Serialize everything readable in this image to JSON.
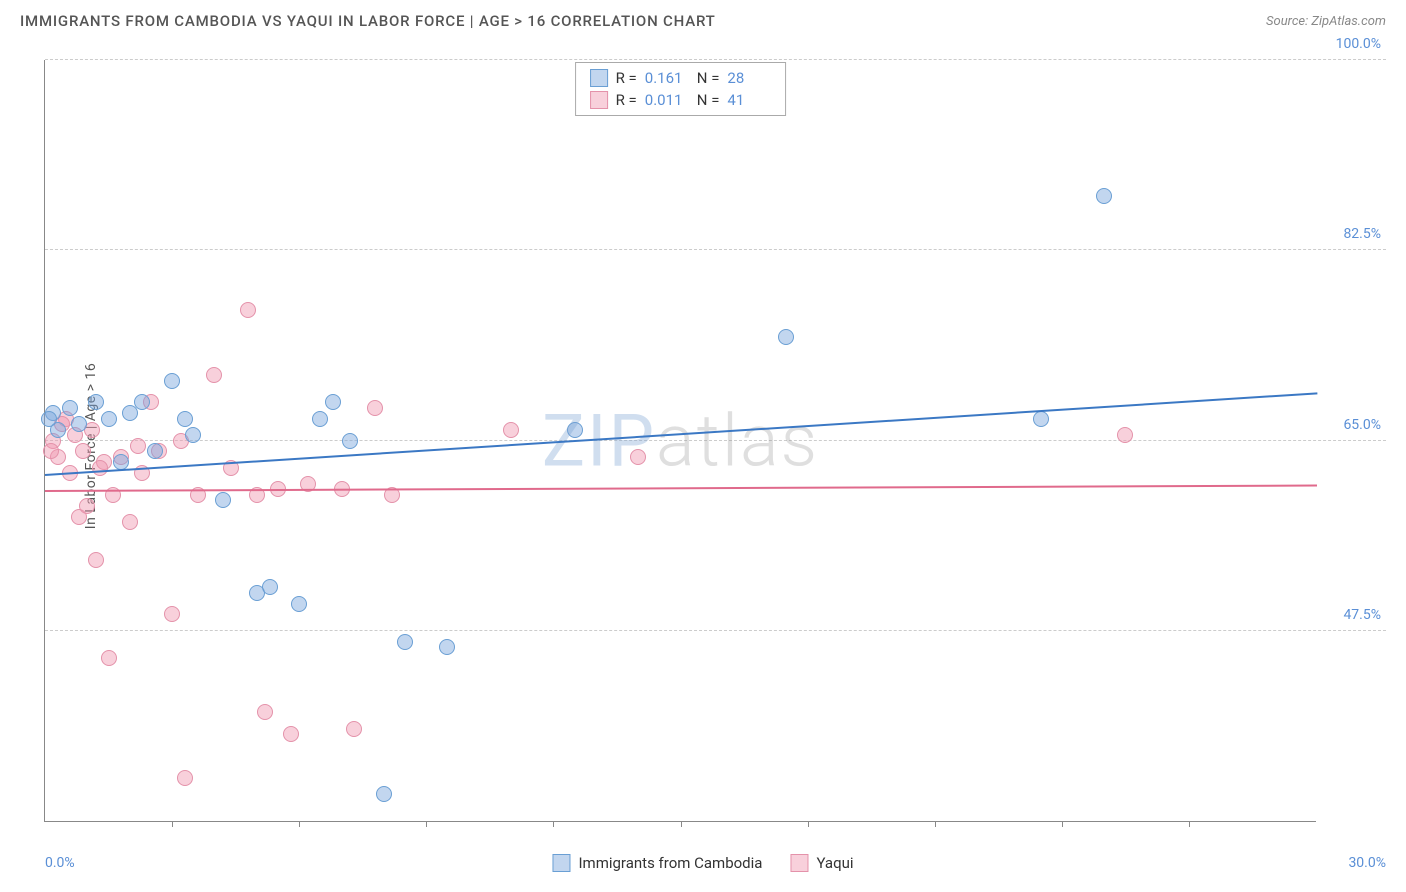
{
  "header": {
    "title": "IMMIGRANTS FROM CAMBODIA VS YAQUI IN LABOR FORCE | AGE > 16 CORRELATION CHART",
    "source": "Source: ZipAtlas.com"
  },
  "chart": {
    "type": "scatter",
    "y_axis_label": "In Labor Force | Age > 16",
    "xlim": [
      0,
      30
    ],
    "ylim": [
      30,
      100
    ],
    "x_min_label": "0.0%",
    "x_max_label": "30.0%",
    "y_ticks": [
      47.5,
      65.0,
      82.5,
      100.0
    ],
    "y_tick_labels": [
      "47.5%",
      "65.0%",
      "82.5%",
      "100.0%"
    ],
    "x_tick_positions": [
      3,
      6,
      9,
      12,
      15,
      18,
      21,
      24,
      27
    ],
    "background_color": "#ffffff",
    "grid_color": "#cccccc",
    "axis_color": "#888888",
    "label_color": "#5a8fd6",
    "point_radius": 8,
    "series": [
      {
        "name": "Immigrants from Cambodia",
        "fill_color": "rgba(120,165,220,0.45)",
        "stroke_color": "#6a9fd4",
        "trend_color": "#3b78c4",
        "trend": {
          "x1": 0,
          "y1": 62.0,
          "x2": 30,
          "y2": 69.5
        },
        "R": "0.161",
        "N": "28",
        "points": [
          [
            0.2,
            67.5
          ],
          [
            0.3,
            66.0
          ],
          [
            0.6,
            68.0
          ],
          [
            0.8,
            66.5
          ],
          [
            1.2,
            68.5
          ],
          [
            1.5,
            67.0
          ],
          [
            1.8,
            63.0
          ],
          [
            2.0,
            67.5
          ],
          [
            2.3,
            68.5
          ],
          [
            2.6,
            64.0
          ],
          [
            3.0,
            70.5
          ],
          [
            3.3,
            67.0
          ],
          [
            3.5,
            65.5
          ],
          [
            4.2,
            59.5
          ],
          [
            5.0,
            51.0
          ],
          [
            5.3,
            51.5
          ],
          [
            6.0,
            50.0
          ],
          [
            6.5,
            67.0
          ],
          [
            6.8,
            68.5
          ],
          [
            7.2,
            65.0
          ],
          [
            8.5,
            46.5
          ],
          [
            9.5,
            46.0
          ],
          [
            12.5,
            66.0
          ],
          [
            17.5,
            74.5
          ],
          [
            23.5,
            67.0
          ],
          [
            25.0,
            87.5
          ],
          [
            8.0,
            32.5
          ],
          [
            0.1,
            67.0
          ]
        ]
      },
      {
        "name": "Yaqui",
        "fill_color": "rgba(240,150,175,0.45)",
        "stroke_color": "#e492aa",
        "trend_color": "#e06a8c",
        "trend": {
          "x1": 0,
          "y1": 60.5,
          "x2": 30,
          "y2": 61.0
        },
        "R": "0.011",
        "N": "41",
        "points": [
          [
            0.2,
            65.0
          ],
          [
            0.3,
            63.5
          ],
          [
            0.5,
            67.0
          ],
          [
            0.6,
            62.0
          ],
          [
            0.8,
            58.0
          ],
          [
            0.9,
            64.0
          ],
          [
            1.0,
            59.0
          ],
          [
            1.2,
            54.0
          ],
          [
            1.4,
            63.0
          ],
          [
            1.5,
            45.0
          ],
          [
            1.8,
            63.5
          ],
          [
            2.0,
            57.5
          ],
          [
            2.2,
            64.5
          ],
          [
            2.5,
            68.5
          ],
          [
            2.7,
            64.0
          ],
          [
            3.0,
            49.0
          ],
          [
            3.2,
            65.0
          ],
          [
            3.3,
            34.0
          ],
          [
            3.6,
            60.0
          ],
          [
            4.0,
            71.0
          ],
          [
            4.4,
            62.5
          ],
          [
            4.8,
            77.0
          ],
          [
            5.0,
            60.0
          ],
          [
            5.2,
            40.0
          ],
          [
            5.5,
            60.5
          ],
          [
            5.8,
            38.0
          ],
          [
            6.2,
            61.0
          ],
          [
            7.0,
            60.5
          ],
          [
            7.3,
            38.5
          ],
          [
            7.8,
            68.0
          ],
          [
            8.2,
            60.0
          ],
          [
            11.0,
            66.0
          ],
          [
            14.0,
            63.5
          ],
          [
            25.5,
            65.5
          ],
          [
            0.4,
            66.5
          ],
          [
            1.1,
            66.0
          ],
          [
            1.6,
            60.0
          ],
          [
            2.3,
            62.0
          ],
          [
            0.7,
            65.5
          ],
          [
            1.3,
            62.5
          ],
          [
            0.15,
            64.0
          ]
        ]
      }
    ],
    "watermark": {
      "part1": "ZIP",
      "part2": "atlas"
    }
  },
  "legend_top": {
    "r_label": "R =",
    "n_label": "N ="
  },
  "legend_bottom": {
    "items": [
      "Immigrants from Cambodia",
      "Yaqui"
    ]
  }
}
